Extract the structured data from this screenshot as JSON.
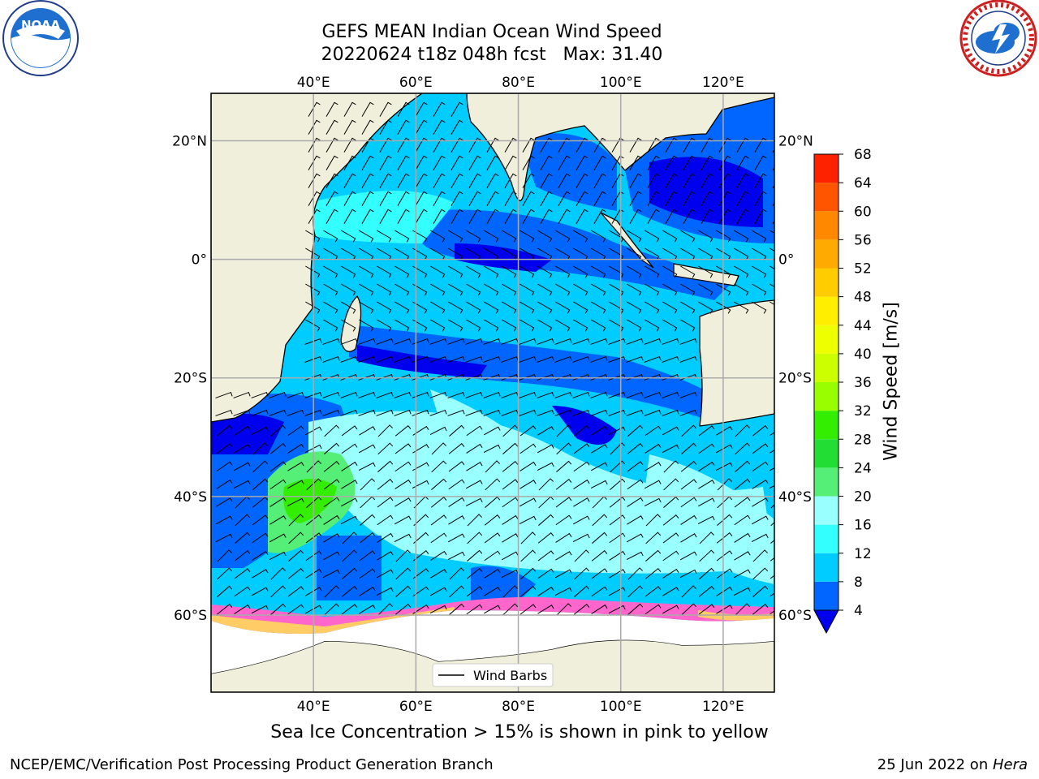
{
  "header": {
    "title_line1": "GEFS MEAN Indian Ocean Wind Speed",
    "title_line2": "20220624 t18z 048h fcst   Max: 31.40"
  },
  "logos": {
    "left": "noaa-logo",
    "right": "nws-logo"
  },
  "map": {
    "lon_ticks": [
      "40°E",
      "60°E",
      "80°E",
      "100°E",
      "120°E"
    ],
    "lat_ticks": [
      "20°N",
      "0°",
      "20°S",
      "40°S",
      "60°S"
    ],
    "lon_range": [
      20,
      130
    ],
    "lat_range": [
      -73,
      28
    ],
    "legend": {
      "label": "Wind Barbs"
    },
    "colors": {
      "land": "#efefdc",
      "ice": "#ffffff",
      "sea_ice_edge": [
        "#ff66cc",
        "#ffb3ff",
        "#ffcc66"
      ]
    }
  },
  "colorbar": {
    "label": "Wind Speed [m/s]",
    "ticks": [
      "4",
      "8",
      "12",
      "16",
      "20",
      "24",
      "28",
      "32",
      "36",
      "40",
      "44",
      "48",
      "52",
      "56",
      "60",
      "64",
      "68"
    ],
    "bins": [
      {
        "min": 4,
        "color": "#0066ff"
      },
      {
        "min": 8,
        "color": "#00ccff"
      },
      {
        "min": 12,
        "color": "#33ffff"
      },
      {
        "min": 16,
        "color": "#99ffff"
      },
      {
        "min": 20,
        "color": "#55ee77"
      },
      {
        "min": 24,
        "color": "#22dd33"
      },
      {
        "min": 28,
        "color": "#33ee00"
      },
      {
        "min": 32,
        "color": "#99ff00"
      },
      {
        "min": 36,
        "color": "#ccff00"
      },
      {
        "min": 40,
        "color": "#eeff00"
      },
      {
        "min": 44,
        "color": "#ffee00"
      },
      {
        "min": 48,
        "color": "#ffcc00"
      },
      {
        "min": 52,
        "color": "#ffaa00"
      },
      {
        "min": 56,
        "color": "#ff8800"
      },
      {
        "min": 60,
        "color": "#ff5500"
      },
      {
        "min": 64,
        "color": "#ff2200"
      }
    ],
    "under_color": "#0000ee"
  },
  "subtitle": "Sea Ice Concentration > 15% is shown in pink to yellow",
  "footer": {
    "left": "NCEP/EMC/Verification Post Processing Product Generation Branch",
    "right_date": "25 Jun 2022 on ",
    "right_host": "Hera"
  }
}
